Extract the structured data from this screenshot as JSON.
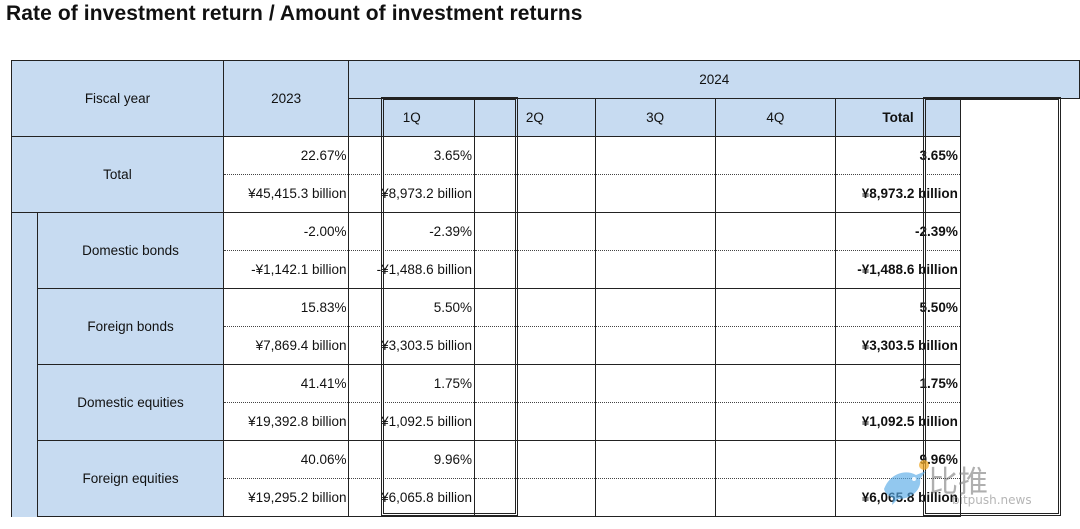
{
  "title": "Rate of investment return / Amount of investment returns",
  "header": {
    "fiscal_year": "Fiscal year",
    "year_prev": "2023",
    "year_curr": "2024",
    "quarters": [
      "1Q",
      "2Q",
      "3Q",
      "4Q"
    ],
    "total": "Total"
  },
  "rows": [
    {
      "label": "Total",
      "rate": {
        "y2023": "22.67%",
        "q1": "3.65%",
        "total": "3.65%"
      },
      "amount": {
        "y2023": "¥45,415.3 billion",
        "q1": "¥8,973.2 billion",
        "total": "¥8,973.2 billion"
      }
    },
    {
      "label": "Domestic bonds",
      "rate": {
        "y2023": "-2.00%",
        "q1": "-2.39%",
        "total": "-2.39%"
      },
      "amount": {
        "y2023": "-¥1,142.1 billion",
        "q1": "-¥1,488.6 billion",
        "total": "-¥1,488.6 billion"
      }
    },
    {
      "label": "Foreign bonds",
      "rate": {
        "y2023": "15.83%",
        "q1": "5.50%",
        "total": "5.50%"
      },
      "amount": {
        "y2023": "¥7,869.4 billion",
        "q1": "¥3,303.5 billion",
        "total": "¥3,303.5 billion"
      }
    },
    {
      "label": "Domestic equities",
      "rate": {
        "y2023": "41.41%",
        "q1": "1.75%",
        "total": "1.75%"
      },
      "amount": {
        "y2023": "¥19,392.8 billion",
        "q1": "¥1,092.5 billion",
        "total": "¥1,092.5 billion"
      }
    },
    {
      "label": "Foreign equities",
      "rate": {
        "y2023": "40.06%",
        "q1": "9.96%",
        "total": "9.96%"
      },
      "amount": {
        "y2023": "¥19,295.2 billion",
        "q1": "¥6,065.8 billion",
        "total": "¥6,065.8 billion"
      }
    }
  ],
  "watermark": {
    "text": "比推",
    "sub": "bitpush.news",
    "icon": "bird-icon"
  }
}
